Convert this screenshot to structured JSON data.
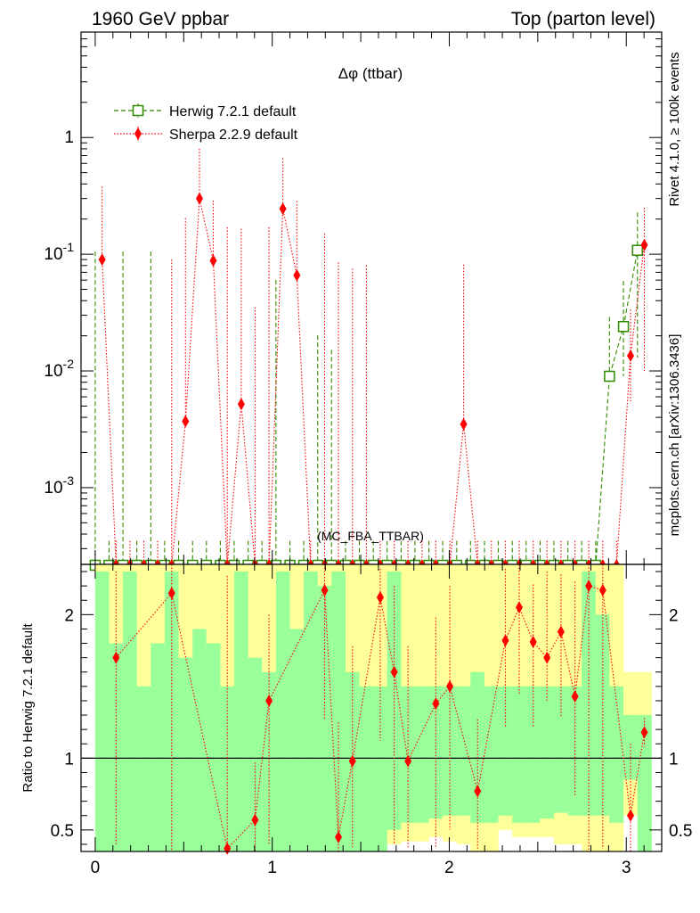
{
  "header": {
    "left": "1960 GeV ppbar",
    "right": "Top (parton level)"
  },
  "side_labels": {
    "rivet": "Rivet 4.1.0, ≥ 100k events",
    "mcplots": "mcplots.cern.ch [arXiv:1306.3436]"
  },
  "chart_data": [
    {
      "type": "line",
      "panel": "main",
      "title": "Δφ (ttbar)",
      "watermark": "(MC_FBA_TTBAR)",
      "xlabel": "",
      "ylabel": "",
      "yscale": "log",
      "xlim": [
        -0.08,
        3.2
      ],
      "ylim": [
        0.00022,
        8
      ],
      "y_ticks": [
        {
          "value": 1,
          "label": "1"
        },
        {
          "value": 0.1,
          "label": "10^-1"
        },
        {
          "value": 0.01,
          "label": "10^-2"
        },
        {
          "value": 0.001,
          "label": "10^-3"
        }
      ],
      "legend": [
        {
          "name": "Herwig 7.2.1 default",
          "color": "#2e8b00",
          "marker": "open-square",
          "dash": "dashed"
        },
        {
          "name": "Sherpa 2.2.9 default",
          "color": "#ff0000",
          "marker": "filled-diamond",
          "dash": "dotted"
        }
      ],
      "series": [
        {
          "name": "Herwig 7.2.1 default",
          "color": "#2e8b00",
          "x": [
            0.0,
            0.078,
            0.157,
            0.235,
            0.314,
            0.392,
            0.471,
            0.55,
            0.628,
            0.707,
            0.785,
            0.864,
            0.942,
            1.021,
            1.1,
            1.178,
            1.257,
            1.335,
            1.414,
            1.492,
            1.571,
            1.649,
            1.728,
            1.806,
            1.885,
            1.963,
            2.042,
            2.12,
            2.199,
            2.277,
            2.356,
            2.434,
            2.513,
            2.591,
            2.67,
            2.748,
            2.827,
            2.905,
            2.984,
            3.063
          ],
          "values": [
            0.00015,
            0.00015,
            0.00015,
            0.00015,
            0.00015,
            0.00015,
            0.00015,
            0.00015,
            0.00015,
            0.00015,
            0.00015,
            0.00015,
            0.00015,
            0.00015,
            0.00015,
            0.00015,
            0.00015,
            0.00015,
            0.00015,
            0.00015,
            0.00015,
            0.00015,
            0.00015,
            0.00015,
            0.00015,
            0.00015,
            0.00015,
            0.00015,
            0.00015,
            0.00015,
            0.00015,
            0.00015,
            0.00015,
            0.00015,
            0.00015,
            0.00015,
            0.00015,
            0.009,
            0.024,
            0.108
          ],
          "err_up": [
            0.105,
            0.0002,
            0.105,
            0.0002,
            0.105,
            0.0002,
            0.0002,
            0.0002,
            0.0002,
            0.0002,
            0.0002,
            0.0002,
            0.0002,
            0.06,
            0.0002,
            0.0002,
            0.02,
            0.015,
            0.0002,
            0.0002,
            0.0002,
            0.0002,
            0.0002,
            0.0002,
            0.0002,
            0.0002,
            0.0002,
            0.0002,
            0.0002,
            0.0002,
            0.0002,
            0.0002,
            0.0002,
            0.0002,
            0.0002,
            0.0002,
            0.0002,
            0.02,
            0.035,
            0.12
          ],
          "err_down": [
            0.00022,
            0.00022,
            0.00022,
            0.00022,
            0.00022,
            0.00022,
            0.00022,
            0.00022,
            0.00022,
            0.00022,
            0.00022,
            0.00022,
            0.00022,
            0.00022,
            0.00022,
            0.00022,
            0.00022,
            0.00022,
            0.00022,
            0.00022,
            0.00022,
            0.00022,
            0.00022,
            0.00022,
            0.00022,
            0.00022,
            0.00022,
            0.00022,
            0.00022,
            0.00022,
            0.00022,
            0.00022,
            0.00022,
            0.00022,
            0.00022,
            0.00022,
            0.00022,
            0.00022,
            0.015,
            0.095
          ]
        },
        {
          "name": "Sherpa 2.2.9 default",
          "color": "#ff0000",
          "x": [
            0.039,
            0.118,
            0.196,
            0.275,
            0.353,
            0.432,
            0.51,
            0.589,
            0.667,
            0.746,
            0.825,
            0.903,
            0.982,
            1.06,
            1.139,
            1.217,
            1.296,
            1.374,
            1.453,
            1.532,
            1.61,
            1.689,
            1.767,
            1.846,
            1.924,
            2.003,
            2.081,
            2.16,
            2.238,
            2.317,
            2.395,
            2.474,
            2.552,
            2.631,
            2.71,
            2.788,
            2.867,
            2.945,
            3.024,
            3.102
          ],
          "values": [
            0.09,
            0.00015,
            0.00015,
            0.00015,
            0.00015,
            0.00015,
            0.0037,
            0.3,
            0.088,
            0.00015,
            0.0052,
            0.00015,
            0.00015,
            0.245,
            0.066,
            0.00015,
            0.00015,
            0.00015,
            0.00015,
            0.00015,
            0.00015,
            0.00015,
            0.00015,
            0.00015,
            0.00015,
            0.00015,
            0.0035,
            0.00015,
            0.00015,
            0.00015,
            0.00015,
            0.00015,
            0.00015,
            0.00015,
            0.00015,
            0.00015,
            0.00015,
            0.00015,
            0.0135,
            0.12
          ],
          "err_up": [
            0.29,
            0.0002,
            0.0002,
            0.0002,
            0.0002,
            0.09,
            0.2,
            0.5,
            0.2,
            0.17,
            0.16,
            0.035,
            0.17,
            0.42,
            0.22,
            0.0002,
            0.15,
            0.085,
            0.075,
            0.08,
            0.0002,
            0.0002,
            0.0002,
            0.0002,
            0.0002,
            0.0002,
            0.078,
            0.0002,
            0.0002,
            0.0002,
            0.0002,
            0.0002,
            0.0002,
            0.0002,
            0.0002,
            0.0002,
            0.0002,
            0.0002,
            0.02,
            0.13
          ],
          "err_down": [
            0.00022,
            0.00022,
            0.00022,
            0.00022,
            0.00022,
            0.00022,
            0.00022,
            0.00022,
            0.00022,
            0.00022,
            0.00022,
            0.00022,
            0.00022,
            0.00022,
            0.00022,
            0.00022,
            0.00022,
            0.00022,
            0.00022,
            0.00022,
            0.00022,
            0.00022,
            0.00022,
            0.00022,
            0.00022,
            0.00022,
            0.00022,
            0.00022,
            0.00022,
            0.00022,
            0.00022,
            0.00022,
            0.00022,
            0.00022,
            0.00022,
            0.00022,
            0.00022,
            0.00022,
            0.008,
            0.11
          ]
        }
      ]
    },
    {
      "type": "line",
      "panel": "ratio",
      "xlabel": "",
      "ylabel": "Ratio to Herwig 7.2.1 default",
      "xlim": [
        -0.08,
        3.2
      ],
      "ylim": [
        0.35,
        2.35
      ],
      "x_ticks": [
        {
          "value": 0,
          "label": "0"
        },
        {
          "value": 1,
          "label": "1"
        },
        {
          "value": 2,
          "label": "2"
        },
        {
          "value": 3,
          "label": "3"
        }
      ],
      "y_ticks": [
        {
          "value": 0.5,
          "label": "0.5"
        },
        {
          "value": 1,
          "label": "1"
        },
        {
          "value": 2,
          "label": "2"
        }
      ],
      "reference_line": 1,
      "bands": {
        "bin_edges": [
          0.0,
          0.078,
          0.157,
          0.235,
          0.314,
          0.392,
          0.471,
          0.55,
          0.628,
          0.707,
          0.785,
          0.864,
          0.942,
          1.021,
          1.1,
          1.178,
          1.257,
          1.335,
          1.414,
          1.492,
          1.571,
          1.649,
          1.728,
          1.806,
          1.885,
          1.963,
          2.042,
          2.12,
          2.199,
          2.277,
          2.356,
          2.434,
          2.513,
          2.591,
          2.67,
          2.748,
          2.827,
          2.905,
          2.984,
          3.063,
          3.142
        ],
        "green_lo": [
          0.35,
          0.35,
          0.35,
          0.35,
          0.35,
          0.35,
          0.35,
          0.35,
          0.35,
          0.35,
          0.35,
          0.35,
          0.35,
          0.35,
          0.35,
          0.35,
          0.35,
          0.35,
          0.35,
          0.35,
          0.35,
          0.5,
          0.55,
          0.55,
          0.58,
          0.6,
          0.6,
          0.55,
          0.55,
          0.6,
          0.55,
          0.55,
          0.58,
          0.62,
          0.6,
          0.6,
          0.6,
          0.55,
          0.85,
          0.35
        ],
        "green_hi": [
          2.3,
          1.8,
          2.3,
          1.5,
          1.8,
          2.3,
          1.7,
          1.9,
          1.8,
          1.5,
          2.3,
          1.7,
          1.6,
          2.3,
          1.9,
          2.3,
          2.2,
          2.3,
          1.6,
          1.5,
          1.5,
          2.3,
          1.5,
          1.5,
          1.5,
          1.5,
          1.5,
          1.6,
          1.5,
          1.5,
          1.5,
          1.5,
          1.5,
          1.5,
          1.5,
          2.3,
          2.0,
          1.5,
          1.3,
          1.3
        ],
        "yellow_lo": [
          0.35,
          0.6,
          0.35,
          0.35,
          0.35,
          0.35,
          0.35,
          0.35,
          0.35,
          0.35,
          0.35,
          0.35,
          0.35,
          0.35,
          0.35,
          0.35,
          0.35,
          0.35,
          0.35,
          0.35,
          0.35,
          0.4,
          0.42,
          0.42,
          0.45,
          0.42,
          0.4,
          0.35,
          0.35,
          0.5,
          0.45,
          0.45,
          0.45,
          0.4,
          0.4,
          0.35,
          0.35,
          0.35,
          0.6,
          0.35
        ],
        "yellow_hi": [
          2.35,
          2.35,
          2.35,
          2.35,
          2.35,
          2.35,
          2.35,
          2.35,
          2.35,
          2.35,
          2.35,
          2.35,
          2.35,
          2.35,
          2.35,
          2.35,
          2.35,
          2.35,
          2.35,
          2.35,
          2.35,
          2.35,
          2.35,
          2.35,
          2.35,
          2.35,
          2.35,
          2.35,
          2.35,
          2.35,
          2.35,
          2.35,
          2.35,
          2.35,
          2.35,
          2.35,
          2.35,
          2.35,
          1.6,
          1.6
        ]
      },
      "series": [
        {
          "name": "Sherpa 2.2.9 default",
          "color": "#ff0000",
          "x": [
            0.118,
            0.432,
            0.746,
            0.903,
            0.982,
            1.296,
            1.374,
            1.453,
            1.61,
            1.689,
            1.767,
            1.924,
            2.003,
            2.16,
            2.317,
            2.395,
            2.474,
            2.552,
            2.631,
            2.71,
            2.788,
            2.867,
            3.024,
            3.102
          ],
          "values": [
            1.7,
            2.15,
            0.37,
            0.57,
            1.4,
            2.17,
            0.45,
            0.98,
            2.12,
            1.6,
            0.98,
            1.38,
            1.5,
            0.77,
            1.82,
            2.05,
            1.81,
            1.7,
            1.88,
            1.43,
            2.2,
            2.17,
            0.6,
            1.18
          ],
          "err_up": [
            0.6,
            0.2,
            1.9,
            0.4,
            0.6,
            0.2,
            0.8,
            0.8,
            0.2,
            0.6,
            0.8,
            0.6,
            0.7,
            0.5,
            0.5,
            0.3,
            0.4,
            0.6,
            0.4,
            0.8,
            0.15,
            0.2,
            0.5,
            0.1
          ],
          "err_down": [
            1.3,
            1.8,
            0.1,
            0.4,
            1.0,
            0.9,
            0.1,
            0.6,
            1.0,
            1.2,
            0.6,
            1.0,
            1.0,
            0.4,
            0.6,
            0.6,
            0.6,
            0.3,
            0.6,
            0.7,
            1.9,
            1.8,
            0.3,
            0.1
          ]
        }
      ]
    }
  ]
}
